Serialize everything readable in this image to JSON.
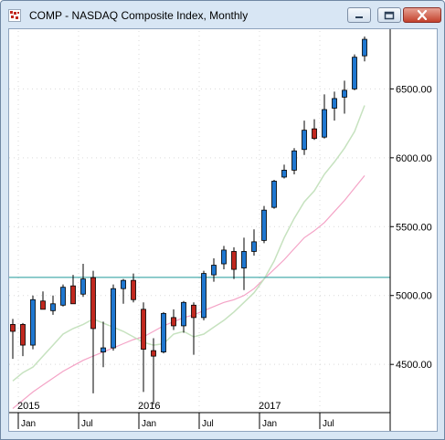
{
  "window": {
    "title": "COMP - NASDAQ Composite Index, Monthly",
    "icons": [
      "chart-app-icon",
      "minimize-icon",
      "restore-icon",
      "close-icon"
    ]
  },
  "colors": {
    "up_candle": "#1f77d0",
    "down_candle": "#c1281f",
    "ma_short": "#c6e2bf",
    "ma_long": "#f4a3c6",
    "horizontal_line": "#1f9a9a",
    "grid": "#d9d9d9"
  },
  "chart_data": {
    "type": "candlestick",
    "title": "COMP - NASDAQ Composite Index, Monthly",
    "y_axis": {
      "position": "right",
      "range": [
        4150,
        6920
      ],
      "ticks": [
        4500,
        5000,
        5500,
        6000,
        6500
      ],
      "tick_labels": [
        "4500.00",
        "5000.00",
        "5500.00",
        "6000.00",
        "6500.00"
      ]
    },
    "x_axis": {
      "year_labels": [
        {
          "label": "2015",
          "index": 1
        },
        {
          "label": "2016",
          "index": 13
        },
        {
          "label": "2017",
          "index": 25
        }
      ],
      "month_labels": [
        {
          "label": "Jan",
          "index": 1
        },
        {
          "label": "Jul",
          "index": 7
        },
        {
          "label": "Jan",
          "index": 13
        },
        {
          "label": "Jul",
          "index": 19
        },
        {
          "label": "Jan",
          "index": 25
        },
        {
          "label": "Jul",
          "index": 31
        }
      ]
    },
    "horizontal_line": 5132,
    "candles": [
      {
        "o": 4790,
        "h": 4830,
        "l": 4540,
        "c": 4740
      },
      {
        "o": 4790,
        "h": 4800,
        "l": 4560,
        "c": 4640
      },
      {
        "o": 4640,
        "h": 5000,
        "l": 4610,
        "c": 4970
      },
      {
        "o": 4960,
        "h": 5030,
        "l": 4920,
        "c": 4900
      },
      {
        "o": 4890,
        "h": 5000,
        "l": 4860,
        "c": 4940
      },
      {
        "o": 4930,
        "h": 5080,
        "l": 4920,
        "c": 5060
      },
      {
        "o": 5070,
        "h": 5150,
        "l": 4950,
        "c": 4940
      },
      {
        "o": 5010,
        "h": 5230,
        "l": 4990,
        "c": 5120
      },
      {
        "o": 5130,
        "h": 5180,
        "l": 4290,
        "c": 4760
      },
      {
        "o": 4590,
        "h": 4810,
        "l": 4480,
        "c": 4620
      },
      {
        "o": 4620,
        "h": 5080,
        "l": 4600,
        "c": 5050
      },
      {
        "o": 5050,
        "h": 5120,
        "l": 4940,
        "c": 5110
      },
      {
        "o": 5110,
        "h": 5160,
        "l": 4950,
        "c": 4970
      },
      {
        "o": 4900,
        "h": 4950,
        "l": 4300,
        "c": 4610
      },
      {
        "o": 4600,
        "h": 4690,
        "l": 4210,
        "c": 4560
      },
      {
        "o": 4590,
        "h": 4880,
        "l": 4580,
        "c": 4870
      },
      {
        "o": 4840,
        "h": 4900,
        "l": 4750,
        "c": 4780
      },
      {
        "o": 4780,
        "h": 4960,
        "l": 4730,
        "c": 4950
      },
      {
        "o": 4930,
        "h": 4950,
        "l": 4570,
        "c": 4840
      },
      {
        "o": 4840,
        "h": 5180,
        "l": 4820,
        "c": 5160
      },
      {
        "o": 5150,
        "h": 5270,
        "l": 5100,
        "c": 5220
      },
      {
        "o": 5230,
        "h": 5360,
        "l": 5190,
        "c": 5330
      },
      {
        "o": 5320,
        "h": 5350,
        "l": 5120,
        "c": 5190
      },
      {
        "o": 5200,
        "h": 5420,
        "l": 5040,
        "c": 5320
      },
      {
        "o": 5320,
        "h": 5480,
        "l": 5290,
        "c": 5390
      },
      {
        "o": 5400,
        "h": 5650,
        "l": 5380,
        "c": 5620
      },
      {
        "o": 5640,
        "h": 5840,
        "l": 5630,
        "c": 5830
      },
      {
        "o": 5860,
        "h": 5950,
        "l": 5850,
        "c": 5910
      },
      {
        "o": 5910,
        "h": 6070,
        "l": 5880,
        "c": 6050
      },
      {
        "o": 6060,
        "h": 6270,
        "l": 6020,
        "c": 6200
      },
      {
        "o": 6210,
        "h": 6280,
        "l": 6130,
        "c": 6140
      },
      {
        "o": 6150,
        "h": 6460,
        "l": 6140,
        "c": 6350
      },
      {
        "o": 6360,
        "h": 6480,
        "l": 6270,
        "c": 6430
      },
      {
        "o": 6440,
        "h": 6560,
        "l": 6320,
        "c": 6490
      },
      {
        "o": 6500,
        "h": 6750,
        "l": 6490,
        "c": 6730
      },
      {
        "o": 6740,
        "h": 6880,
        "l": 6700,
        "c": 6860
      }
    ],
    "ma_short": [
      4380,
      4440,
      4480,
      4560,
      4640,
      4720,
      4760,
      4790,
      4830,
      4800,
      4770,
      4740,
      4700,
      4660,
      4640,
      4650,
      4720,
      4740,
      4700,
      4720,
      4770,
      4820,
      4880,
      4950,
      5020,
      5120,
      5250,
      5420,
      5560,
      5680,
      5760,
      5880,
      5970,
      6070,
      6190,
      6380
    ],
    "ma_long": [
      4180,
      4240,
      4300,
      4350,
      4400,
      4450,
      4490,
      4530,
      4560,
      4590,
      4620,
      4650,
      4680,
      4700,
      4740,
      4780,
      4810,
      4840,
      4860,
      4890,
      4920,
      4950,
      4970,
      5000,
      5050,
      5120,
      5190,
      5260,
      5340,
      5420,
      5470,
      5530,
      5610,
      5690,
      5780,
      5870
    ]
  }
}
